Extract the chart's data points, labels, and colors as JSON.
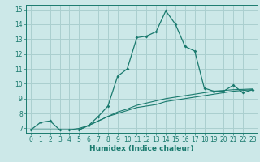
{
  "xlabel": "Humidex (Indice chaleur)",
  "bg_color": "#cce8e8",
  "grid_color": "#aacfcf",
  "line_color": "#1a7a6e",
  "xlim": [
    -0.5,
    23.5
  ],
  "ylim": [
    6.7,
    15.3
  ],
  "yticks": [
    7,
    8,
    9,
    10,
    11,
    12,
    13,
    14,
    15
  ],
  "xticks": [
    0,
    1,
    2,
    3,
    4,
    5,
    6,
    7,
    8,
    9,
    10,
    11,
    12,
    13,
    14,
    15,
    16,
    17,
    18,
    19,
    20,
    21,
    22,
    23
  ],
  "main_series": {
    "x": [
      0,
      1,
      2,
      3,
      4,
      5,
      6,
      7,
      8,
      9,
      10,
      11,
      12,
      13,
      14,
      15,
      16,
      17,
      18,
      19,
      20,
      21,
      22,
      23
    ],
    "y": [
      6.9,
      7.4,
      7.5,
      6.9,
      6.9,
      6.9,
      7.2,
      7.8,
      8.5,
      10.5,
      11.0,
      13.1,
      13.2,
      13.5,
      14.9,
      14.0,
      12.5,
      12.2,
      9.7,
      9.5,
      9.5,
      9.9,
      9.4,
      9.6
    ]
  },
  "ref_line1": {
    "x": [
      0,
      4,
      5,
      6,
      7,
      8,
      9,
      10,
      11,
      12,
      13,
      14,
      15,
      16,
      17,
      18,
      19,
      20,
      21,
      22,
      23
    ],
    "y": [
      6.9,
      6.9,
      6.9,
      7.2,
      7.5,
      7.8,
      8.0,
      8.2,
      8.4,
      8.5,
      8.6,
      8.8,
      8.9,
      9.0,
      9.1,
      9.2,
      9.3,
      9.4,
      9.5,
      9.55,
      9.6
    ]
  },
  "ref_line2": {
    "x": [
      0,
      4,
      5,
      6,
      7,
      8,
      9,
      10,
      11,
      12,
      13,
      14,
      15,
      16,
      17,
      18,
      19,
      20,
      21,
      22,
      23
    ],
    "y": [
      6.9,
      6.9,
      7.0,
      7.2,
      7.5,
      7.8,
      8.1,
      8.3,
      8.55,
      8.7,
      8.85,
      9.0,
      9.1,
      9.2,
      9.3,
      9.4,
      9.5,
      9.55,
      9.6,
      9.62,
      9.65
    ]
  }
}
